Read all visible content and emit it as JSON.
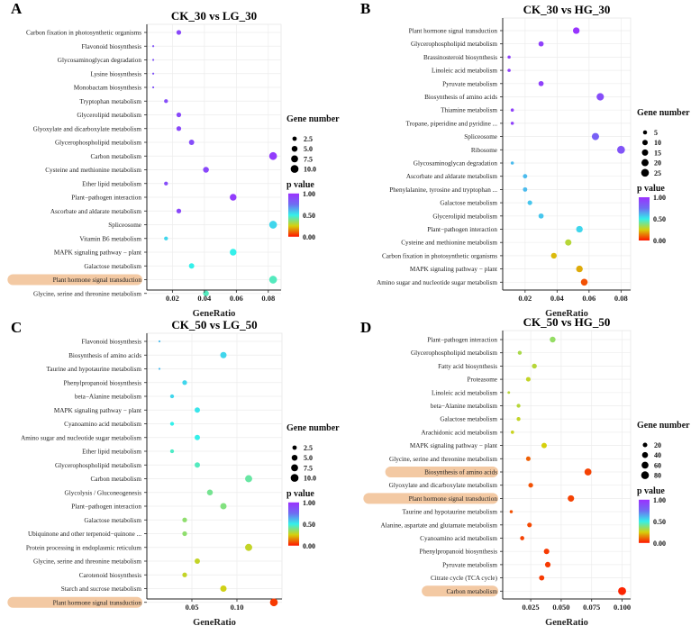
{
  "chart_data": [
    {
      "type": "scatter",
      "panel": "A",
      "title": "CK_30 vs LG_30",
      "xlabel": "GeneRatio",
      "xlim": [
        0.004,
        0.088
      ],
      "xticks": [
        0.02,
        0.04,
        0.06,
        0.08
      ],
      "xtick_labels": [
        "0.02",
        "0.04",
        "0.06",
        "0.08"
      ],
      "size_legend": {
        "title": "Gene number",
        "values": [
          2.5,
          5.0,
          7.5,
          10.0
        ],
        "labels": [
          "2.5",
          "5.0",
          "7.5",
          "10.0"
        ],
        "min": 1,
        "max": 11
      },
      "color_legend": {
        "title": "p value",
        "labels": [
          "1.00",
          "0.50",
          "0.00"
        ],
        "min": 0,
        "max": 1
      },
      "points": [
        {
          "term": "Carbon fixation in photosynthetic organisms",
          "gene_ratio": 0.024,
          "p_value": 0.9,
          "gene_number": 3,
          "highlight": false
        },
        {
          "term": "Flavonoid biosynthesis",
          "gene_ratio": 0.008,
          "p_value": 0.85,
          "gene_number": 1,
          "highlight": false
        },
        {
          "term": "Glycosaminoglycan degradation",
          "gene_ratio": 0.008,
          "p_value": 0.85,
          "gene_number": 1,
          "highlight": false
        },
        {
          "term": "Lysine biosynthesis",
          "gene_ratio": 0.008,
          "p_value": 0.85,
          "gene_number": 1,
          "highlight": false
        },
        {
          "term": "Monobactam biosynthesis",
          "gene_ratio": 0.008,
          "p_value": 0.85,
          "gene_number": 1,
          "highlight": false
        },
        {
          "term": "Tryptophan metabolism",
          "gene_ratio": 0.016,
          "p_value": 0.88,
          "gene_number": 2,
          "highlight": false
        },
        {
          "term": "Glycerolipid metabolism",
          "gene_ratio": 0.024,
          "p_value": 0.9,
          "gene_number": 3,
          "highlight": false
        },
        {
          "term": "Glyoxylate and dicarboxylate metabolism",
          "gene_ratio": 0.024,
          "p_value": 0.9,
          "gene_number": 3,
          "highlight": false
        },
        {
          "term": "Glycerophospholipid metabolism",
          "gene_ratio": 0.032,
          "p_value": 0.88,
          "gene_number": 4,
          "highlight": false
        },
        {
          "term": "Carbon metabolism",
          "gene_ratio": 0.083,
          "p_value": 0.95,
          "gene_number": 10,
          "highlight": false
        },
        {
          "term": "Cysteine and methionine metabolism",
          "gene_ratio": 0.041,
          "p_value": 0.9,
          "gene_number": 5,
          "highlight": false
        },
        {
          "term": "Ether lipid metabolism",
          "gene_ratio": 0.016,
          "p_value": 0.88,
          "gene_number": 2,
          "highlight": false
        },
        {
          "term": "Plant−pathogen interaction",
          "gene_ratio": 0.058,
          "p_value": 0.95,
          "gene_number": 7,
          "highlight": false
        },
        {
          "term": "Ascorbate and aldarate metabolism",
          "gene_ratio": 0.024,
          "p_value": 0.9,
          "gene_number": 3,
          "highlight": false
        },
        {
          "term": "Spliceosome",
          "gene_ratio": 0.083,
          "p_value": 0.55,
          "gene_number": 10,
          "highlight": false
        },
        {
          "term": "Vitamin B6 metabolism",
          "gene_ratio": 0.016,
          "p_value": 0.55,
          "gene_number": 2,
          "highlight": false
        },
        {
          "term": "MAPK signaling pathway − plant",
          "gene_ratio": 0.058,
          "p_value": 0.5,
          "gene_number": 7,
          "highlight": false
        },
        {
          "term": "Galactose metabolism",
          "gene_ratio": 0.032,
          "p_value": 0.5,
          "gene_number": 4,
          "highlight": false
        },
        {
          "term": "Plant hormone signal transduction",
          "gene_ratio": 0.083,
          "p_value": 0.45,
          "gene_number": 10,
          "highlight": true
        },
        {
          "term": "Glycine, serine and threonine metabolism",
          "gene_ratio": 0.041,
          "p_value": 0.45,
          "gene_number": 5,
          "highlight": false
        }
      ]
    },
    {
      "type": "scatter",
      "panel": "B",
      "title": "CK_30 vs HG_30",
      "xlabel": "GeneRatio",
      "xlim": [
        0.006,
        0.086
      ],
      "xticks": [
        0.02,
        0.04,
        0.06,
        0.08
      ],
      "xtick_labels": [
        "0.02",
        "0.04",
        "0.06",
        "0.08"
      ],
      "size_legend": {
        "title": "Gene number",
        "values": [
          5,
          10,
          15,
          20,
          25
        ],
        "labels": [
          "5",
          "10",
          "15",
          "20",
          "25"
        ],
        "min": 2,
        "max": 28
      },
      "color_legend": {
        "title": "p value",
        "labels": [
          "1.00",
          "0.50",
          "0.00"
        ],
        "min": 0,
        "max": 1
      },
      "points": [
        {
          "term": "Plant hormone signal transduction",
          "gene_ratio": 0.052,
          "p_value": 0.98,
          "gene_number": 17,
          "highlight": false
        },
        {
          "term": "Glycerophospholipid metabolism",
          "gene_ratio": 0.03,
          "p_value": 0.93,
          "gene_number": 9,
          "highlight": false
        },
        {
          "term": "Brassinosteroid biosynthesis",
          "gene_ratio": 0.01,
          "p_value": 0.93,
          "gene_number": 3,
          "highlight": false
        },
        {
          "term": "Linoleic acid metabolism",
          "gene_ratio": 0.01,
          "p_value": 0.93,
          "gene_number": 3,
          "highlight": false
        },
        {
          "term": "Pyruvate metabolism",
          "gene_ratio": 0.03,
          "p_value": 0.93,
          "gene_number": 9,
          "highlight": false
        },
        {
          "term": "Biosynthesis of amino acids",
          "gene_ratio": 0.067,
          "p_value": 0.88,
          "gene_number": 22,
          "highlight": false
        },
        {
          "term": "Thiamine metabolism",
          "gene_ratio": 0.012,
          "p_value": 0.93,
          "gene_number": 3,
          "highlight": false
        },
        {
          "term": "Tropane, piperidine and pyridine ...",
          "gene_ratio": 0.012,
          "p_value": 0.93,
          "gene_number": 3,
          "highlight": false
        },
        {
          "term": "Spliceosome",
          "gene_ratio": 0.064,
          "p_value": 0.8,
          "gene_number": 21,
          "highlight": false
        },
        {
          "term": "Ribosome",
          "gene_ratio": 0.08,
          "p_value": 0.85,
          "gene_number": 26,
          "highlight": false
        },
        {
          "term": "Glycosaminoglycan degradation",
          "gene_ratio": 0.012,
          "p_value": 0.6,
          "gene_number": 3,
          "highlight": false
        },
        {
          "term": "Ascorbate and aldarate metabolism",
          "gene_ratio": 0.02,
          "p_value": 0.6,
          "gene_number": 6,
          "highlight": false
        },
        {
          "term": "Phenylalanine, tyrosine and tryptophan ...",
          "gene_ratio": 0.02,
          "p_value": 0.6,
          "gene_number": 6,
          "highlight": false
        },
        {
          "term": "Galactose metabolism",
          "gene_ratio": 0.023,
          "p_value": 0.58,
          "gene_number": 7,
          "highlight": false
        },
        {
          "term": "Glycerolipid metabolism",
          "gene_ratio": 0.03,
          "p_value": 0.58,
          "gene_number": 9,
          "highlight": false
        },
        {
          "term": "Plant−pathogen interaction",
          "gene_ratio": 0.054,
          "p_value": 0.55,
          "gene_number": 17,
          "highlight": false
        },
        {
          "term": "Cysteine and methionine metabolism",
          "gene_ratio": 0.047,
          "p_value": 0.3,
          "gene_number": 15,
          "highlight": false
        },
        {
          "term": "Carbon fixation in photosynthetic organisms",
          "gene_ratio": 0.038,
          "p_value": 0.22,
          "gene_number": 12,
          "highlight": false
        },
        {
          "term": "MAPK signaling pathway − plant",
          "gene_ratio": 0.054,
          "p_value": 0.2,
          "gene_number": 17,
          "highlight": false
        },
        {
          "term": "Amino sugar and nucleotide sugar metabolism",
          "gene_ratio": 0.057,
          "p_value": 0.08,
          "gene_number": 18,
          "highlight": false
        }
      ]
    },
    {
      "type": "scatter",
      "panel": "C",
      "title": "CK_50 vs LG_50",
      "xlabel": "GeneRatio",
      "xlim": [
        0.0,
        0.15
      ],
      "xticks": [
        0.05,
        0.1
      ],
      "xtick_labels": [
        "0.05",
        "0.10"
      ],
      "size_legend": {
        "title": "Gene number",
        "values": [
          2.5,
          5.0,
          7.5,
          10.0
        ],
        "labels": [
          "2.5",
          "5.0",
          "7.5",
          "10.0"
        ],
        "min": 1,
        "max": 11
      },
      "color_legend": {
        "title": "p value",
        "labels": [
          "1.00",
          "0.50",
          "0.00"
        ],
        "min": 0,
        "max": 1
      },
      "points": [
        {
          "term": "Flavonoid biosynthesis",
          "gene_ratio": 0.014,
          "p_value": 0.6,
          "gene_number": 1,
          "highlight": false
        },
        {
          "term": "Biosynthesis of amino acids",
          "gene_ratio": 0.085,
          "p_value": 0.55,
          "gene_number": 6,
          "highlight": false
        },
        {
          "term": "Taurine and hypotaurine metabolism",
          "gene_ratio": 0.014,
          "p_value": 0.6,
          "gene_number": 1,
          "highlight": false
        },
        {
          "term": "Phenylpropanoid biosynthesis",
          "gene_ratio": 0.042,
          "p_value": 0.55,
          "gene_number": 3,
          "highlight": false
        },
        {
          "term": "beta−Alanine metabolism",
          "gene_ratio": 0.028,
          "p_value": 0.55,
          "gene_number": 2,
          "highlight": false
        },
        {
          "term": "MAPK signaling pathway − plant",
          "gene_ratio": 0.056,
          "p_value": 0.52,
          "gene_number": 4,
          "highlight": false
        },
        {
          "term": "Cyanoamino acid metabolism",
          "gene_ratio": 0.028,
          "p_value": 0.5,
          "gene_number": 2,
          "highlight": false
        },
        {
          "term": "Amino sugar and nucleotide sugar metabolism",
          "gene_ratio": 0.056,
          "p_value": 0.5,
          "gene_number": 4,
          "highlight": false
        },
        {
          "term": "Ether lipid metabolism",
          "gene_ratio": 0.028,
          "p_value": 0.46,
          "gene_number": 2,
          "highlight": false
        },
        {
          "term": "Glycerophospholipid metabolism",
          "gene_ratio": 0.056,
          "p_value": 0.45,
          "gene_number": 4,
          "highlight": false
        },
        {
          "term": "Carbon metabolism",
          "gene_ratio": 0.113,
          "p_value": 0.42,
          "gene_number": 8,
          "highlight": false
        },
        {
          "term": "Glycolysis / Gluconeogenesis",
          "gene_ratio": 0.07,
          "p_value": 0.4,
          "gene_number": 5,
          "highlight": false
        },
        {
          "term": "Plant−pathogen interaction",
          "gene_ratio": 0.085,
          "p_value": 0.38,
          "gene_number": 6,
          "highlight": false
        },
        {
          "term": "Galactose metabolism",
          "gene_ratio": 0.042,
          "p_value": 0.36,
          "gene_number": 3,
          "highlight": false
        },
        {
          "term": "Ubiquinone and other terpenoid−quinone ...",
          "gene_ratio": 0.042,
          "p_value": 0.36,
          "gene_number": 3,
          "highlight": false
        },
        {
          "term": "Protein processing in endoplasmic reticulum",
          "gene_ratio": 0.113,
          "p_value": 0.28,
          "gene_number": 8,
          "highlight": false
        },
        {
          "term": "Glycine, serine and threonine metabolism",
          "gene_ratio": 0.056,
          "p_value": 0.28,
          "gene_number": 4,
          "highlight": false
        },
        {
          "term": "Carotenoid biosynthesis",
          "gene_ratio": 0.042,
          "p_value": 0.28,
          "gene_number": 3,
          "highlight": false
        },
        {
          "term": "Starch and sucrose metabolism",
          "gene_ratio": 0.085,
          "p_value": 0.26,
          "gene_number": 6,
          "highlight": false
        },
        {
          "term": "Plant hormone signal transduction",
          "gene_ratio": 0.141,
          "p_value": 0.05,
          "gene_number": 10,
          "highlight": true
        }
      ]
    },
    {
      "type": "scatter",
      "panel": "D",
      "title": "CK_50 vs HG_50",
      "xlabel": "GeneRatio",
      "xlim": [
        0.002,
        0.107
      ],
      "xticks": [
        0.025,
        0.05,
        0.075,
        0.1
      ],
      "xtick_labels": [
        "0.025",
        "0.050",
        "0.075",
        "0.100"
      ],
      "size_legend": {
        "title": "Gene number",
        "values": [
          20,
          40,
          60,
          80
        ],
        "labels": [
          "20",
          "40",
          "60",
          "80"
        ],
        "min": 5,
        "max": 90
      },
      "color_legend": {
        "title": "p value",
        "labels": [
          "1.00",
          "0.50",
          "0.00"
        ],
        "min": 0,
        "max": 1
      },
      "points": [
        {
          "term": "Plant−pathogen interaction",
          "gene_ratio": 0.043,
          "p_value": 0.35,
          "gene_number": 38,
          "highlight": false
        },
        {
          "term": "Glycerophospholipid metabolism",
          "gene_ratio": 0.016,
          "p_value": 0.32,
          "gene_number": 14,
          "highlight": false
        },
        {
          "term": "Fatty acid biosynthesis",
          "gene_ratio": 0.028,
          "p_value": 0.3,
          "gene_number": 24,
          "highlight": false
        },
        {
          "term": "Proteasome",
          "gene_ratio": 0.023,
          "p_value": 0.28,
          "gene_number": 20,
          "highlight": false
        },
        {
          "term": "Linoleic acid metabolism",
          "gene_ratio": 0.007,
          "p_value": 0.3,
          "gene_number": 6,
          "highlight": false
        },
        {
          "term": "beta−Alanine metabolism",
          "gene_ratio": 0.015,
          "p_value": 0.3,
          "gene_number": 13,
          "highlight": false
        },
        {
          "term": "Galactose metabolism",
          "gene_ratio": 0.015,
          "p_value": 0.28,
          "gene_number": 13,
          "highlight": false
        },
        {
          "term": "Arachidonic acid metabolism",
          "gene_ratio": 0.01,
          "p_value": 0.27,
          "gene_number": 9,
          "highlight": false
        },
        {
          "term": "MAPK signaling pathway − plant",
          "gene_ratio": 0.036,
          "p_value": 0.25,
          "gene_number": 31,
          "highlight": false
        },
        {
          "term": "Glycine, serine and threonine metabolism",
          "gene_ratio": 0.023,
          "p_value": 0.1,
          "gene_number": 20,
          "highlight": false
        },
        {
          "term": "Biosynthesis of amino acids",
          "gene_ratio": 0.072,
          "p_value": 0.06,
          "gene_number": 62,
          "highlight": true
        },
        {
          "term": "Glyoxylate and dicarboxylate metabolism",
          "gene_ratio": 0.025,
          "p_value": 0.08,
          "gene_number": 22,
          "highlight": false
        },
        {
          "term": "Plant hormone signal transduction",
          "gene_ratio": 0.058,
          "p_value": 0.06,
          "gene_number": 50,
          "highlight": true
        },
        {
          "term": "Taurine and hypotaurine metabolism",
          "gene_ratio": 0.009,
          "p_value": 0.08,
          "gene_number": 8,
          "highlight": false
        },
        {
          "term": "Alanine, aspartate and glutamate metabolism",
          "gene_ratio": 0.024,
          "p_value": 0.07,
          "gene_number": 21,
          "highlight": false
        },
        {
          "term": "Cyanoamino acid metabolism",
          "gene_ratio": 0.018,
          "p_value": 0.06,
          "gene_number": 16,
          "highlight": false
        },
        {
          "term": "Phenylpropanoid biosynthesis",
          "gene_ratio": 0.038,
          "p_value": 0.05,
          "gene_number": 33,
          "highlight": false
        },
        {
          "term": "Pyruvate metabolism",
          "gene_ratio": 0.039,
          "p_value": 0.05,
          "gene_number": 34,
          "highlight": false
        },
        {
          "term": "Citrate cycle (TCA cycle)",
          "gene_ratio": 0.034,
          "p_value": 0.05,
          "gene_number": 29,
          "highlight": false
        },
        {
          "term": "Carbon metabolism",
          "gene_ratio": 0.1,
          "p_value": 0.02,
          "gene_number": 86,
          "highlight": true
        }
      ]
    }
  ]
}
